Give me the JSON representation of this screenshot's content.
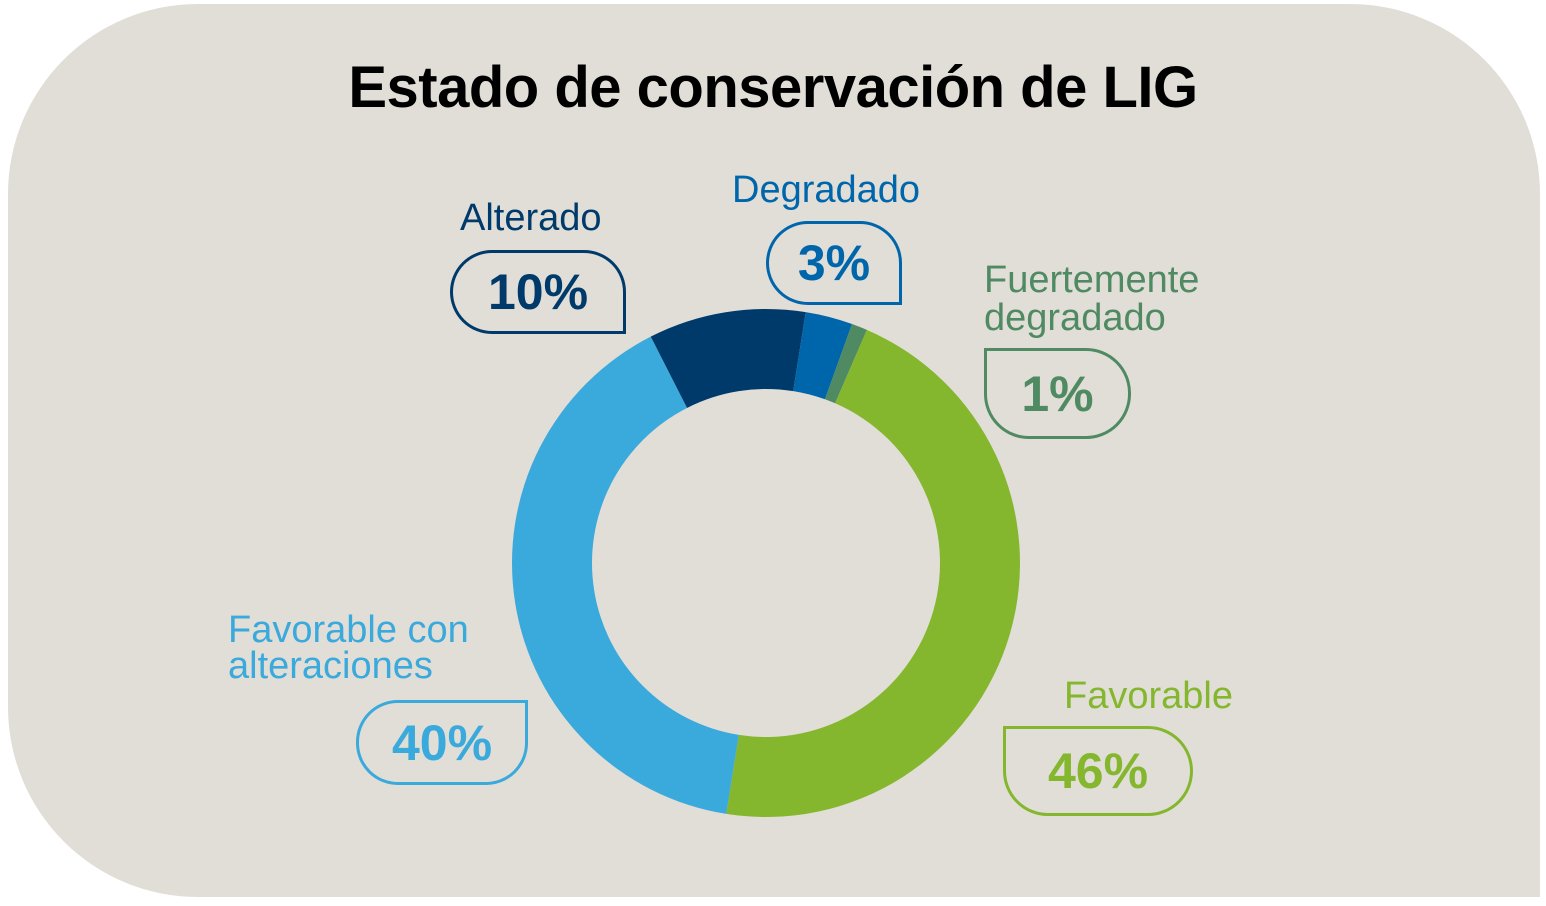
{
  "chart_data": {
    "type": "pie",
    "title": "Estado de conservación de LIG",
    "slices": [
      {
        "key": "alterado",
        "label": "Alterado",
        "value": 10,
        "value_text": "10%",
        "color": "#003a6b"
      },
      {
        "key": "degradado",
        "label": "Degradado",
        "value": 3,
        "value_text": "3%",
        "color": "#0066ab"
      },
      {
        "key": "fuertemente",
        "label": "Fuertemente degradado",
        "label_lines": [
          "Fuertemente",
          "degradado"
        ],
        "value": 1,
        "value_text": "1%",
        "color": "#4f8a63"
      },
      {
        "key": "favorable",
        "label": "Favorable",
        "value": 46,
        "value_text": "46%",
        "color": "#84b72d"
      },
      {
        "key": "favorable_alt",
        "label": "Favorable con alteraciones",
        "label_lines": [
          "Favorable con",
          "alteraciones"
        ],
        "value": 40,
        "value_text": "40%",
        "color": "#3aa9db"
      }
    ],
    "donut": true
  },
  "colors": {
    "background_card": "#e1ded8",
    "title": "#000000"
  }
}
